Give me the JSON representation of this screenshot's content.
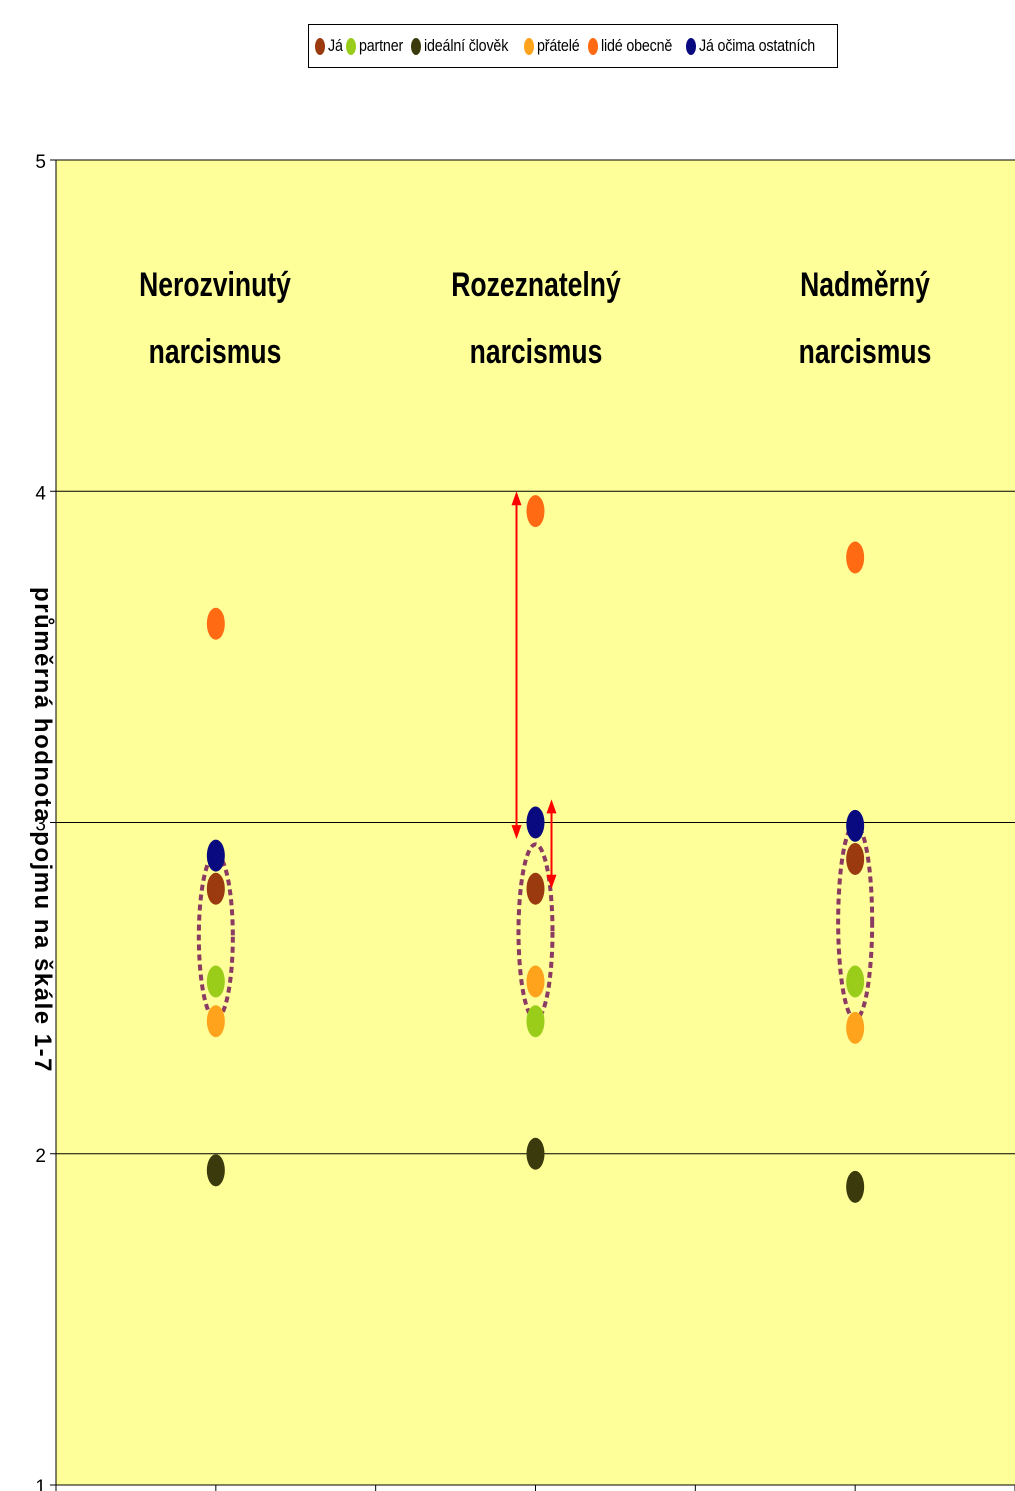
{
  "legend": [
    {
      "label": "Já",
      "color": "#9b3a0f"
    },
    {
      "label": "partner",
      "color": "#9acd1a"
    },
    {
      "label": "ideální člověk",
      "color": "#3a3a0c"
    },
    {
      "label": "přátelé",
      "color": "#ffa21c"
    },
    {
      "label": "lidé obecně",
      "color": "#ff6a13"
    },
    {
      "label": "Já očima ostatních",
      "color": "#0a0a80"
    }
  ],
  "chart_data": {
    "type": "scatter",
    "title": "",
    "xlabel": "",
    "ylabel": "průměrná hodnota pojmu na škále 1-7",
    "ylim": [
      1,
      5
    ],
    "yticks": [
      "1",
      "2",
      "3",
      "4",
      "5"
    ],
    "grid": true,
    "legend_position": "top",
    "background": "#ffff99",
    "categories": [
      {
        "line1": "Nerozvinutý",
        "line2": "narcismus"
      },
      {
        "line1": "Rozeznatelný",
        "line2": "narcismus"
      },
      {
        "line1": "Nadměrný",
        "line2": "narcismus"
      }
    ],
    "series": [
      {
        "name": "Já",
        "color": "#9b3a0f",
        "values": [
          2.8,
          2.8,
          2.89
        ]
      },
      {
        "name": "partner",
        "color": "#9acd1a",
        "values": [
          2.52,
          2.4,
          2.52
        ]
      },
      {
        "name": "ideální člověk",
        "color": "#3a3a0c",
        "values": [
          1.95,
          2.0,
          1.9
        ]
      },
      {
        "name": "přátelé",
        "color": "#ffa21c",
        "values": [
          2.4,
          2.52,
          2.38
        ]
      },
      {
        "name": "lidé obecně",
        "color": "#ff6a13",
        "values": [
          3.6,
          3.94,
          3.8
        ]
      },
      {
        "name": "Já očima ostatních",
        "color": "#0a0a80",
        "values": [
          2.9,
          3.0,
          2.99
        ]
      }
    ],
    "highlight_ellipses": [
      {
        "category": 0,
        "y_from": 2.43,
        "y_to": 2.88,
        "color": "#8b3a62"
      },
      {
        "category": 1,
        "y_from": 2.43,
        "y_to": 2.91,
        "color": "#8b3a62"
      },
      {
        "category": 2,
        "y_from": 2.43,
        "y_to": 2.97,
        "color": "#8b3a62"
      }
    ],
    "arrows": [
      {
        "category": 1,
        "side": "left",
        "from": 2.95,
        "to": 4.0,
        "color": "#ff0000"
      },
      {
        "category": 1,
        "side": "right",
        "from": 2.8,
        "to": 3.07,
        "color": "#ff0000"
      }
    ]
  }
}
